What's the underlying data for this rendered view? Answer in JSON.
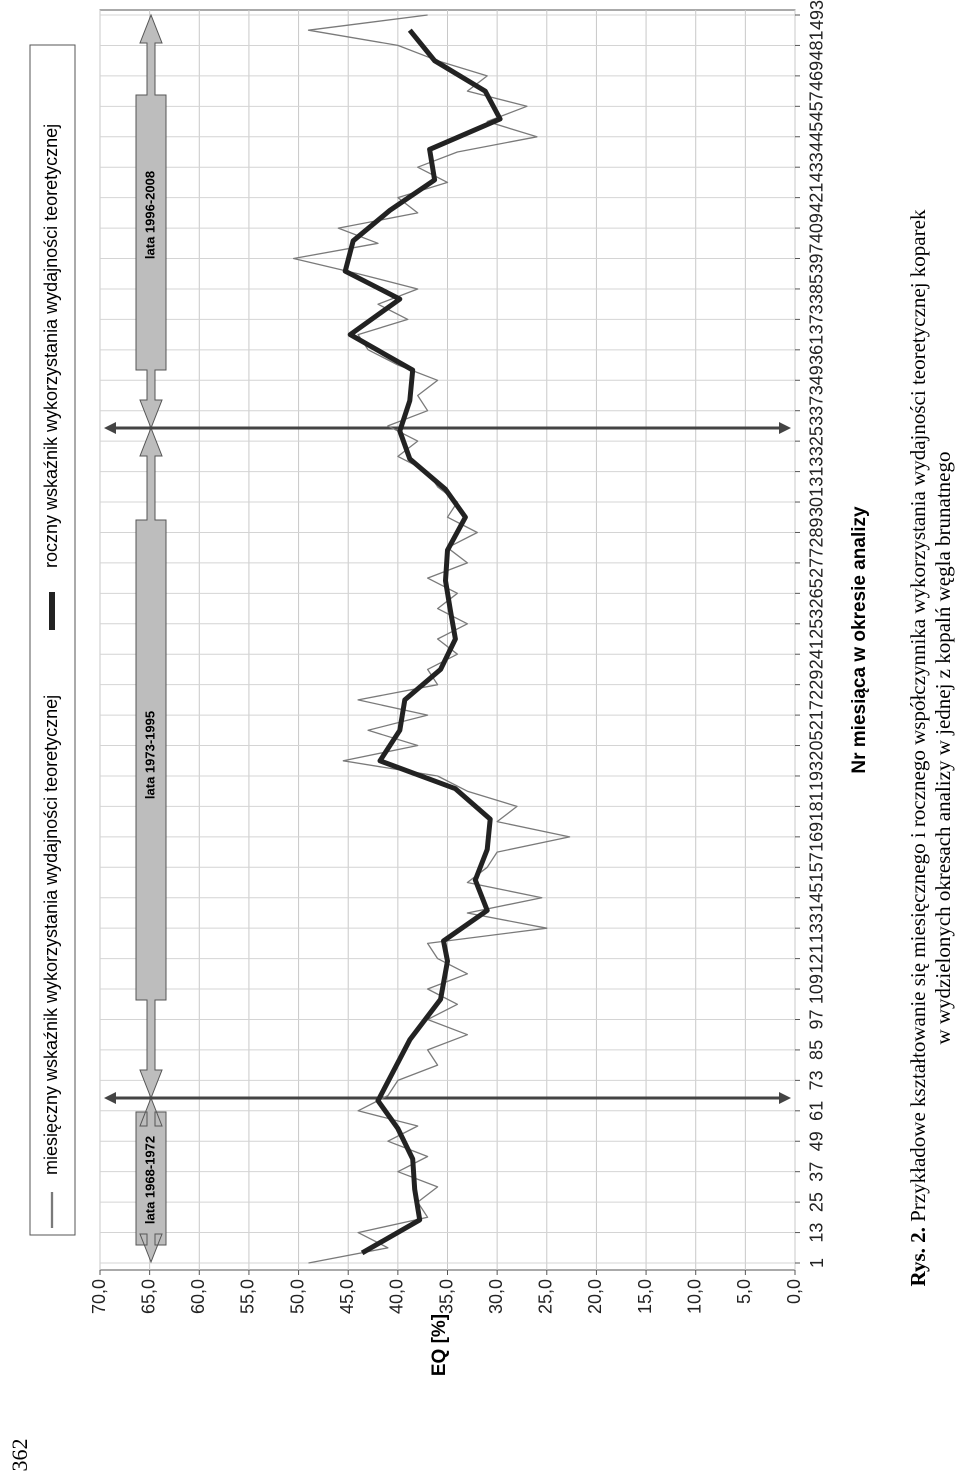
{
  "chart_data": {
    "type": "line",
    "x_label": "Nr miesiąca w okresie analizy",
    "y_label": "EQ [%]",
    "xlim": [
      1,
      493
    ],
    "xticks": [
      1,
      13,
      25,
      37,
      49,
      61,
      73,
      85,
      97,
      109,
      121,
      133,
      145,
      157,
      169,
      181,
      193,
      205,
      217,
      229,
      241,
      253,
      265,
      277,
      289,
      301,
      313,
      325,
      337,
      349,
      361,
      373,
      385,
      397,
      409,
      421,
      433,
      445,
      457,
      469,
      481,
      493
    ],
    "ylim": [
      0,
      70
    ],
    "yticks": [
      {
        "value": 0,
        "label": "0,0"
      },
      {
        "value": 5,
        "label": "5,0"
      },
      {
        "value": 10,
        "label": "10,0"
      },
      {
        "value": 15,
        "label": "15,0"
      },
      {
        "value": 20,
        "label": "20,0"
      },
      {
        "value": 25,
        "label": "25,0"
      },
      {
        "value": 30,
        "label": "30,0"
      },
      {
        "value": 35,
        "label": "35,0"
      },
      {
        "value": 40,
        "label": "40,0"
      },
      {
        "value": 45,
        "label": "45,0"
      },
      {
        "value": 50,
        "label": "50,0"
      },
      {
        "value": 55,
        "label": "55,0"
      },
      {
        "value": 60,
        "label": "60,0"
      },
      {
        "value": 65,
        "label": "65,0"
      },
      {
        "value": 70,
        "label": "70,0"
      }
    ],
    "grid": true,
    "series": [
      {
        "name": "miesięczny wskaźnik wykorzystania wydajności teoretycznej",
        "color": "#7a7a7a",
        "x": [
          1,
          7,
          13,
          19,
          25,
          31,
          37,
          43,
          49,
          55,
          61,
          67,
          73,
          79,
          85,
          91,
          97,
          103,
          109,
          115,
          121,
          127,
          133,
          139,
          145,
          151,
          157,
          163,
          169,
          175,
          181,
          187,
          193,
          199,
          205,
          211,
          217,
          223,
          229,
          235,
          241,
          247,
          253,
          259,
          265,
          271,
          277,
          283,
          289,
          295,
          301,
          307,
          313,
          319,
          325,
          331,
          337,
          343,
          349,
          355,
          361,
          367,
          373,
          379,
          385,
          391,
          397,
          403,
          409,
          415,
          421,
          427,
          433,
          439,
          445,
          451,
          457,
          463,
          469,
          475,
          481,
          487,
          493
        ],
        "values": [
          49,
          41,
          44,
          37,
          38,
          36,
          40,
          37,
          41,
          38,
          44,
          41,
          40,
          36,
          37,
          33,
          37,
          34,
          37,
          33,
          36,
          37,
          25,
          33,
          25.5,
          33,
          31,
          30,
          22.7,
          30,
          28,
          33,
          36,
          45.5,
          38,
          43,
          37,
          44,
          36,
          37,
          34,
          36,
          33,
          36,
          34,
          37,
          33,
          35,
          32,
          35,
          34,
          36,
          37,
          40,
          38,
          41,
          37,
          38,
          36,
          40,
          43,
          44,
          39,
          42,
          38,
          44,
          50.5,
          42,
          46,
          38,
          40,
          35,
          38,
          34,
          26,
          31,
          27,
          33,
          31,
          36,
          40,
          49,
          37
        ]
      },
      {
        "name": "roczny wskaźnik wykorzystania wydajności teoretycznej",
        "color": "#222222",
        "x": [
          5,
          18,
          30,
          42,
          54,
          65,
          89,
          105,
          120,
          128,
          140,
          152,
          164,
          176,
          188,
          199,
          211,
          223,
          235,
          247,
          258,
          270,
          282,
          295,
          306,
          318,
          329,
          341,
          353,
          367,
          381,
          392,
          404,
          416,
          428,
          440,
          452,
          463,
          475,
          487
        ],
        "values": [
          43.6,
          37.8,
          38.3,
          38.5,
          40,
          42,
          38.8,
          35.7,
          35,
          35.4,
          31,
          32.2,
          31,
          30.7,
          34.2,
          41.8,
          39.8,
          39.3,
          35.7,
          34.2,
          34.7,
          35.2,
          35,
          33.2,
          35.2,
          38.8,
          39.8,
          38.8,
          38.5,
          44.8,
          39.8,
          45.3,
          44.5,
          40.8,
          36.3,
          36.8,
          29.7,
          31.2,
          36.3,
          38.8
        ]
      }
    ],
    "annotations": [
      "lata 1968-1972",
      "lata 1973-1995",
      "lata 1996-2008"
    ]
  },
  "caption": {
    "label": "Rys. 2.",
    "line1": "Przykładowe kształtowanie się miesięcznego i rocznego współczynnika wykorzystania wydajności teoretycznej koparek",
    "line2": "w wydzielonych okresach analizy w jednej z kopalń węgla brunatnego"
  },
  "page_number": "362"
}
